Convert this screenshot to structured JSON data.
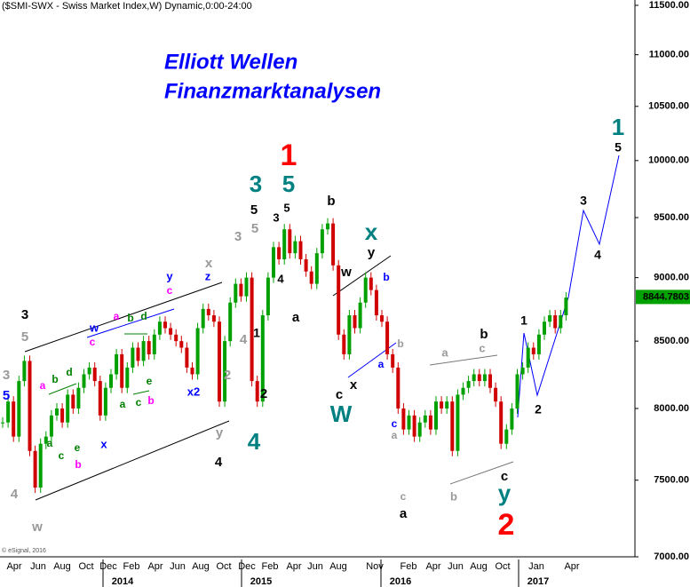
{
  "chart_data": {
    "type": "candlestick",
    "title": "($SMI-SWX - Swiss Market Index,W) Dynamic,0:00-24:00",
    "watermark": [
      "Elliott Wellen",
      "Finanzmarktanalysen"
    ],
    "copyright": "© eSignal, 2016",
    "log_scale": true,
    "up_color": "#00a000",
    "down_color": "#d00000",
    "ylim": [
      7000,
      11500
    ],
    "yticks": [
      {
        "value": 7000,
        "label": "7000.00"
      },
      {
        "value": 7500,
        "label": "7500.00"
      },
      {
        "value": 8000,
        "label": "8000.00"
      },
      {
        "value": 8500,
        "label": "8500.00"
      },
      {
        "value": 9000,
        "label": "9000.00"
      },
      {
        "value": 9500,
        "label": "9500.00"
      },
      {
        "value": 10000,
        "label": "10000.00"
      },
      {
        "value": 10500,
        "label": "10500.00"
      },
      {
        "value": 11000,
        "label": "11000.00"
      },
      {
        "value": 11500,
        "label": "11500.00"
      }
    ],
    "last_price": 8844.7803,
    "x_labels": [
      "Apr",
      "Jun",
      "Aug",
      "Oct",
      "Dec",
      "Feb",
      "Apr",
      "Jun",
      "Aug",
      "Oct",
      "Dec",
      "Feb",
      "Apr",
      "Jun",
      "Aug",
      "Nov",
      "Feb",
      "Apr",
      "Jun",
      "Aug",
      "Oct",
      "Jan",
      "Apr"
    ],
    "year_labels": [
      "2014",
      "2015",
      "2016",
      "2017"
    ],
    "values": [
      7900,
      8050,
      7800,
      8200,
      8350,
      7700,
      7450,
      7750,
      7800,
      7950,
      8000,
      7900,
      8100,
      8000,
      8150,
      8250,
      8300,
      8200,
      7950,
      8150,
      8250,
      8400,
      8150,
      8300,
      8450,
      8350,
      8500,
      8400,
      8550,
      8650,
      8600,
      8550,
      8500,
      8450,
      8300,
      8250,
      8600,
      8750,
      8700,
      8650,
      8050,
      8500,
      8800,
      8950,
      8850,
      9000,
      8200,
      8050,
      8700,
      9000,
      9250,
      9150,
      9400,
      9200,
      9300,
      9150,
      9050,
      8950,
      9200,
      9400,
      9450,
      9100,
      8550,
      8400,
      8700,
      8600,
      8800,
      9000,
      8900,
      8700,
      8650,
      8400,
      8300,
      8000,
      7850,
      7950,
      7800,
      7900,
      7950,
      7850,
      8050,
      8000,
      8050,
      7700,
      8100,
      8150,
      8200,
      8250,
      8200,
      8250,
      8150,
      8050,
      7750,
      7850,
      8000,
      8250,
      8300,
      8450,
      8400,
      8550,
      8650,
      8700,
      8600,
      8700,
      8840
    ],
    "annotations": [
      {
        "text": "3",
        "color": "#000000"
      },
      {
        "text": "5",
        "color": "#999999"
      },
      {
        "text": "3",
        "color": "#999999"
      },
      {
        "text": "5",
        "color": "#0000ff"
      },
      {
        "text": "4",
        "color": "#999999"
      },
      {
        "text": "w",
        "color": "#999999"
      },
      {
        "text": "a",
        "color": "#ff00ff"
      },
      {
        "text": "b",
        "color": "#008000"
      },
      {
        "text": "d",
        "color": "#008000"
      },
      {
        "text": "a",
        "color": "#008000"
      },
      {
        "text": "c",
        "color": "#008000"
      },
      {
        "text": "e",
        "color": "#008000"
      },
      {
        "text": "b",
        "color": "#ff00ff"
      },
      {
        "text": "w",
        "color": "#0000ff"
      },
      {
        "text": "c",
        "color": "#ff00ff"
      },
      {
        "text": "a",
        "color": "#ff00ff"
      },
      {
        "text": "b",
        "color": "#008000"
      },
      {
        "text": "d",
        "color": "#008000"
      },
      {
        "text": "x",
        "color": "#0000ff"
      },
      {
        "text": "a",
        "color": "#008000"
      },
      {
        "text": "c",
        "color": "#008000"
      },
      {
        "text": "b",
        "color": "#ff00ff"
      },
      {
        "text": "e",
        "color": "#008000"
      },
      {
        "text": "y",
        "color": "#0000ff"
      },
      {
        "text": "c",
        "color": "#ff00ff"
      },
      {
        "text": "z",
        "color": "#0000ff"
      },
      {
        "text": "x",
        "color": "#999999"
      },
      {
        "text": "x2",
        "color": "#0000ff"
      },
      {
        "text": "2",
        "color": "#999999"
      },
      {
        "text": "y",
        "color": "#999999"
      },
      {
        "text": "4",
        "color": "#000000"
      },
      {
        "text": "3",
        "color": "#999999"
      },
      {
        "text": "5",
        "color": "#999999"
      },
      {
        "text": "5",
        "color": "#000000"
      },
      {
        "text": "3",
        "color": "#008080"
      },
      {
        "text": "4",
        "color": "#999999"
      },
      {
        "text": "1",
        "color": "#000000"
      },
      {
        "text": "2",
        "color": "#000000"
      },
      {
        "text": "4",
        "color": "#008080"
      },
      {
        "text": "5",
        "color": "#008080"
      },
      {
        "text": "1",
        "color": "#ff0000"
      },
      {
        "text": "5",
        "color": "#000000"
      },
      {
        "text": "3",
        "color": "#000000"
      },
      {
        "text": "4",
        "color": "#000000"
      },
      {
        "text": "a",
        "color": "#000000"
      },
      {
        "text": "b",
        "color": "#000000"
      },
      {
        "text": "w",
        "color": "#000000"
      },
      {
        "text": "x",
        "color": "#008080"
      },
      {
        "text": "y",
        "color": "#000000"
      },
      {
        "text": "b",
        "color": "#0000ff"
      },
      {
        "text": "c",
        "color": "#000000"
      },
      {
        "text": "x",
        "color": "#000000"
      },
      {
        "text": "W",
        "color": "#008080"
      },
      {
        "text": "a",
        "color": "#0000ff"
      },
      {
        "text": "b",
        "color": "#999999"
      },
      {
        "text": "c",
        "color": "#0000ff"
      },
      {
        "text": "a",
        "color": "#999999"
      },
      {
        "text": "c",
        "color": "#999999"
      },
      {
        "text": "a",
        "color": "#000000"
      },
      {
        "text": "a",
        "color": "#999999"
      },
      {
        "text": "b",
        "color": "#000000"
      },
      {
        "text": "c",
        "color": "#999999"
      },
      {
        "text": "b",
        "color": "#999999"
      },
      {
        "text": "c",
        "color": "#000000"
      },
      {
        "text": "y",
        "color": "#008080"
      },
      {
        "text": "2",
        "color": "#ff0000"
      },
      {
        "text": "1",
        "color": "#000000"
      },
      {
        "text": "2",
        "color": "#000000"
      },
      {
        "text": "3",
        "color": "#000000"
      },
      {
        "text": "4",
        "color": "#000000"
      },
      {
        "text": "5",
        "color": "#000000"
      },
      {
        "text": "1",
        "color": "#008080"
      }
    ]
  }
}
